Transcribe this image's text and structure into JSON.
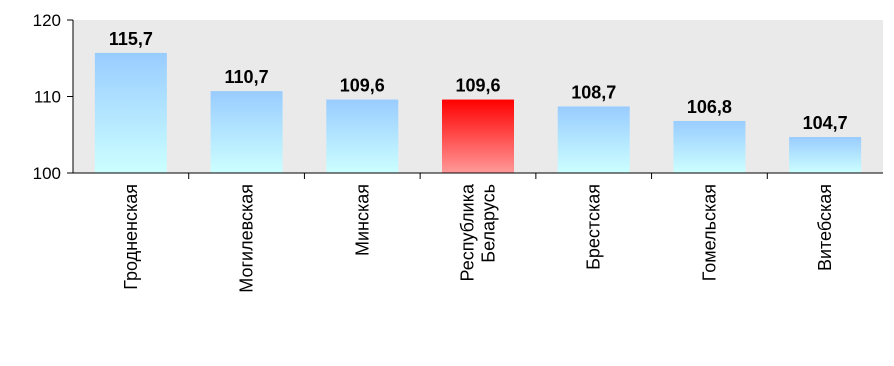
{
  "chart_data": {
    "type": "bar",
    "categories": [
      "Гродненская",
      "Могилевская",
      "Минская",
      "Республика Беларусь",
      "Брестская",
      "Гомельская",
      "Витебская"
    ],
    "values": [
      115.7,
      110.7,
      109.6,
      109.6,
      108.7,
      106.8,
      104.7
    ],
    "data_labels": [
      "115,7",
      "110,7",
      "109,6",
      "109,6",
      "108,7",
      "106,8",
      "104,7"
    ],
    "highlight_index": 3,
    "ylim": [
      100,
      120
    ],
    "yticks": [
      100,
      110,
      120
    ],
    "grid": false,
    "colors": {
      "bar_top": "#99ccff",
      "bar_bottom": "#ccffff",
      "highlight_top": "#ff0000",
      "highlight_bottom": "#ff9999",
      "plot_background": "#eaeaea"
    }
  }
}
